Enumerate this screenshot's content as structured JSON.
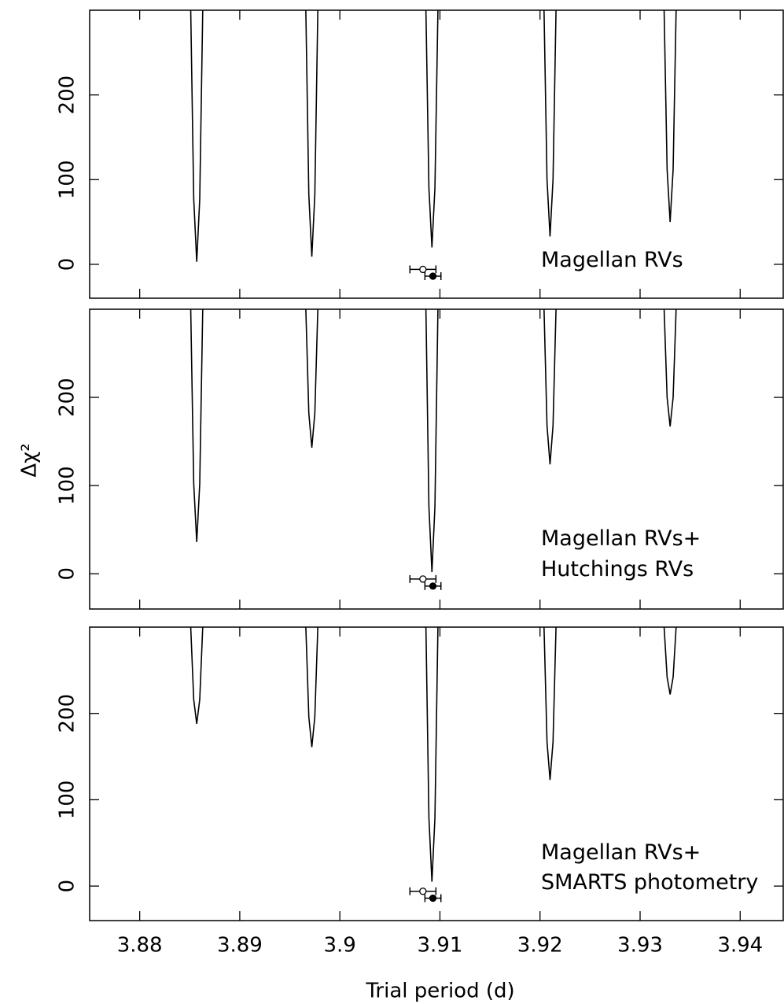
{
  "axes": {
    "xlabel": "Trial period (d)",
    "ylabel": "Δχ²"
  },
  "chart_data": [
    {
      "type": "line",
      "color": "#000000",
      "xlim": [
        3.875,
        3.9443
      ],
      "ylim": [
        -40,
        300
      ],
      "xticks": [
        3.88,
        3.89,
        3.9,
        3.91,
        3.92,
        3.93,
        3.94
      ],
      "yticks": [
        0,
        100,
        200
      ],
      "annotations": [
        "Magellan RVs"
      ],
      "x": [
        3.8851,
        3.8854,
        3.8857,
        3.886,
        3.8863,
        3.8915,
        3.8966,
        3.8969,
        3.8972,
        3.8975,
        3.8978,
        3.903,
        3.9086,
        3.9089,
        3.9092,
        3.9095,
        3.9098,
        3.915,
        3.9204,
        3.9207,
        3.921,
        3.9213,
        3.9216,
        3.927,
        3.9324,
        3.9327,
        3.933,
        3.9333,
        3.9336
      ],
      "values": [
        300,
        77,
        3,
        77,
        300,
        null,
        300,
        82,
        9,
        82,
        300,
        null,
        300,
        90,
        20,
        90,
        300,
        null,
        300,
        100,
        33,
        100,
        300,
        null,
        300,
        112,
        50,
        112,
        300
      ],
      "points": [
        {
          "x": 3.9083,
          "y": -6,
          "xerr": 0.0013,
          "filled": false
        },
        {
          "x": 3.9093,
          "y": -14,
          "xerr": 0.0008,
          "filled": true
        }
      ]
    },
    {
      "type": "line",
      "color": "#000000",
      "xlim": [
        3.875,
        3.9443
      ],
      "ylim": [
        -40,
        300
      ],
      "xticks": [
        3.88,
        3.89,
        3.9,
        3.91,
        3.92,
        3.93,
        3.94
      ],
      "yticks": [
        0,
        100,
        200
      ],
      "annotations": [
        "Magellan RVs+",
        "Hutchings RVs"
      ],
      "x": [
        3.8851,
        3.8854,
        3.8857,
        3.886,
        3.8863,
        3.8915,
        3.8966,
        3.8969,
        3.8972,
        3.8975,
        3.8978,
        3.903,
        3.9086,
        3.9089,
        3.9092,
        3.9095,
        3.9098,
        3.915,
        3.9204,
        3.9207,
        3.921,
        3.9213,
        3.9216,
        3.927,
        3.9324,
        3.9327,
        3.933,
        3.9333,
        3.9336
      ],
      "values": [
        300,
        102,
        36,
        102,
        300,
        null,
        300,
        182,
        143,
        182,
        300,
        null,
        300,
        76,
        2,
        76,
        300,
        null,
        300,
        168,
        124,
        168,
        300,
        null,
        300,
        200,
        167,
        200,
        300
      ],
      "points": [
        {
          "x": 3.9083,
          "y": -6,
          "xerr": 0.0013,
          "filled": false
        },
        {
          "x": 3.9093,
          "y": -14,
          "xerr": 0.0008,
          "filled": true
        }
      ]
    },
    {
      "type": "line",
      "color": "#000000",
      "xlim": [
        3.875,
        3.9443
      ],
      "ylim": [
        -40,
        300
      ],
      "xticks": [
        3.88,
        3.89,
        3.9,
        3.91,
        3.92,
        3.93,
        3.94
      ],
      "yticks": [
        0,
        100,
        200
      ],
      "annotations": [
        "Magellan RVs+",
        "SMARTS photometry"
      ],
      "x": [
        3.8851,
        3.8854,
        3.8857,
        3.886,
        3.8863,
        3.8915,
        3.8966,
        3.8969,
        3.8972,
        3.8975,
        3.8978,
        3.903,
        3.9086,
        3.9089,
        3.9092,
        3.9095,
        3.9098,
        3.915,
        3.9204,
        3.9207,
        3.921,
        3.9213,
        3.9216,
        3.927,
        3.9324,
        3.9327,
        3.933,
        3.9333,
        3.9336
      ],
      "values": [
        300,
        216,
        188,
        216,
        300,
        null,
        300,
        196,
        161,
        196,
        300,
        null,
        300,
        79,
        5,
        79,
        300,
        null,
        300,
        167,
        123,
        167,
        300,
        null,
        300,
        242,
        222,
        242,
        300
      ],
      "points": [
        {
          "x": 3.9083,
          "y": -6,
          "xerr": 0.0013,
          "filled": false
        },
        {
          "x": 3.9093,
          "y": -14,
          "xerr": 0.0008,
          "filled": true
        }
      ]
    }
  ]
}
